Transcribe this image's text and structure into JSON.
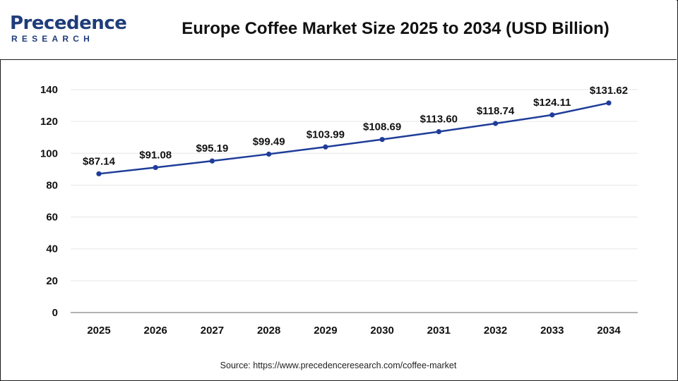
{
  "brand": {
    "name": "Precedence",
    "sub": "RESEARCH"
  },
  "title": "Europe Coffee Market Size 2025 to 2034 (USD Billion)",
  "source": "Source: https://www.precedenceresearch.com/coffee-market",
  "colors": {
    "line": "#1f3d99",
    "brand": "#1f3d7a",
    "grid": "#e6e6e6",
    "axis": "#999999"
  },
  "chart_data": {
    "type": "line",
    "title": "Europe Coffee Market Size 2025 to 2034 (USD Billion)",
    "xlabel": "",
    "ylabel": "",
    "categories": [
      "2025",
      "2026",
      "2027",
      "2028",
      "2029",
      "2030",
      "2031",
      "2032",
      "2033",
      "2034"
    ],
    "values": [
      87.14,
      91.08,
      95.19,
      99.49,
      103.99,
      108.69,
      113.6,
      118.74,
      124.11,
      131.62
    ],
    "labels": [
      "$87.14",
      "$91.08",
      "$95.19",
      "$99.49",
      "$103.99",
      "$108.69",
      "$113.60",
      "$118.74",
      "$124.11",
      "$131.62"
    ],
    "yticks": [
      "0",
      "20",
      "40",
      "60",
      "80",
      "100",
      "120",
      "140"
    ],
    "ylim": [
      0,
      140
    ],
    "grid": true,
    "legend": "none"
  }
}
